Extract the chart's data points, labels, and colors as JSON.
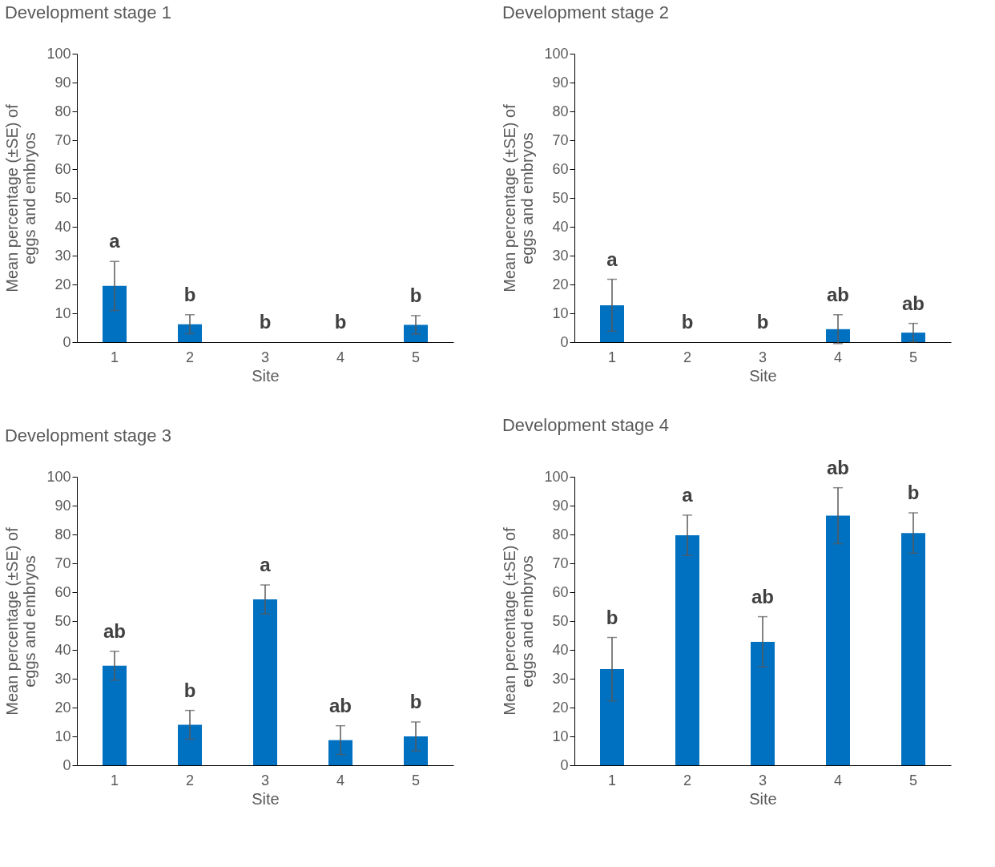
{
  "chart_data": [
    {
      "type": "bar",
      "title": "Development stage 1",
      "xlabel": "Site",
      "ylabel": "Mean percentage (±SE)  of\neggs and embryos",
      "categories": [
        "1",
        "2",
        "3",
        "4",
        "5"
      ],
      "ylim": [
        0,
        100
      ],
      "yticks": [
        0,
        10,
        20,
        30,
        40,
        50,
        60,
        70,
        80,
        90,
        100
      ],
      "series": [
        {
          "color": "#0070c0",
          "values": [
            19.5,
            6.2,
            0,
            0,
            6
          ],
          "errors": [
            8.5,
            3.3,
            null,
            null,
            3.2
          ]
        }
      ],
      "annotations": [
        "a",
        "b",
        "b",
        "b",
        "b"
      ]
    },
    {
      "type": "bar",
      "title": "Development stage 2",
      "xlabel": "Site",
      "ylabel": "Mean percentage (±SE)  of\neggs and embryos",
      "categories": [
        "1",
        "2",
        "3",
        "4",
        "5"
      ],
      "ylim": [
        0,
        100
      ],
      "yticks": [
        0,
        10,
        20,
        30,
        40,
        50,
        60,
        70,
        80,
        90,
        100
      ],
      "series": [
        {
          "color": "#0070c0",
          "values": [
            12.8,
            0,
            0,
            4.5,
            3.3
          ],
          "errors": [
            9,
            null,
            null,
            5,
            3.2
          ]
        }
      ],
      "annotations": [
        "a",
        "b",
        "b",
        "ab",
        "ab"
      ]
    },
    {
      "type": "bar",
      "title": "Development stage 3",
      "xlabel": "Site",
      "ylabel": "Mean percentage (±SE)  of\neggs and embryos",
      "categories": [
        "1",
        "2",
        "3",
        "4",
        "5"
      ],
      "ylim": [
        0,
        100
      ],
      "yticks": [
        0,
        10,
        20,
        30,
        40,
        50,
        60,
        70,
        80,
        90,
        100
      ],
      "series": [
        {
          "color": "#0070c0",
          "values": [
            34.5,
            14,
            57.5,
            8.7,
            10
          ],
          "errors": [
            5,
            5,
            5,
            5,
            5
          ]
        }
      ],
      "annotations": [
        "ab",
        "b",
        "a",
        "ab",
        "b"
      ]
    },
    {
      "type": "bar",
      "title": "Development stage 4",
      "xlabel": "Site",
      "ylabel": "Mean percentage (±SE)  of\neggs and embryos",
      "categories": [
        "1",
        "2",
        "3",
        "4",
        "5"
      ],
      "ylim": [
        0,
        100
      ],
      "yticks": [
        0,
        10,
        20,
        30,
        40,
        50,
        60,
        70,
        80,
        90,
        100
      ],
      "series": [
        {
          "color": "#0070c0",
          "values": [
            33.3,
            79.7,
            42.8,
            86.5,
            80.5
          ],
          "errors": [
            11,
            7,
            8.7,
            9.7,
            7
          ]
        }
      ],
      "annotations": [
        "b",
        "a",
        "ab",
        "ab",
        "b"
      ]
    }
  ]
}
